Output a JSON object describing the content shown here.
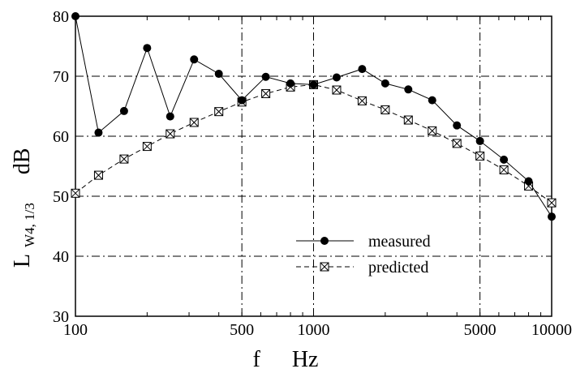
{
  "chart_data": {
    "type": "line",
    "xscale": "log",
    "xlim": [
      100,
      10000
    ],
    "ylim": [
      30,
      80
    ],
    "xticks": [
      100,
      500,
      1000,
      5000,
      10000
    ],
    "xtick_labels": [
      "100",
      "500",
      "1000",
      "5000",
      "10000"
    ],
    "yticks": [
      30,
      40,
      50,
      60,
      70,
      80
    ],
    "ytick_labels": [
      "30",
      "40",
      "50",
      "60",
      "70",
      "80"
    ],
    "xlabel": "f",
    "xunit": "Hz",
    "ylabel": "L",
    "ylabel_sub": "W4, 1/3",
    "yunit": "dB",
    "grid": true,
    "legend_position": "bottom-center",
    "x": [
      100,
      125,
      160,
      200,
      250,
      315,
      400,
      500,
      630,
      800,
      1000,
      1250,
      1600,
      2000,
      2500,
      3150,
      4000,
      5000,
      6300,
      8000,
      10000
    ],
    "series": [
      {
        "name": "measured",
        "marker": "filled-circle",
        "line": "solid",
        "values": [
          80.0,
          60.6,
          64.2,
          74.7,
          63.3,
          72.8,
          70.4,
          66.0,
          69.9,
          68.8,
          68.6,
          69.8,
          71.2,
          68.8,
          67.8,
          66.0,
          61.8,
          59.2,
          56.1,
          52.5,
          46.6
        ]
      },
      {
        "name": "predicted",
        "marker": "crossed-square",
        "line": "dashed",
        "values": [
          50.5,
          53.5,
          56.2,
          58.3,
          60.4,
          62.3,
          64.1,
          65.7,
          67.1,
          68.2,
          68.6,
          67.7,
          65.9,
          64.4,
          62.7,
          60.9,
          58.8,
          56.7,
          54.4,
          51.7,
          48.9
        ]
      }
    ]
  }
}
